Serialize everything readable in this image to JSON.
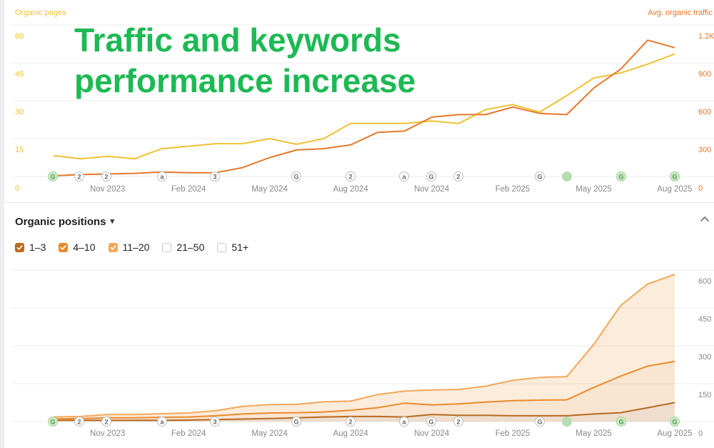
{
  "headline": {
    "line1": "Traffic and keywords",
    "line2": "performance increase"
  },
  "top_chart": {
    "left_axis_title": "Organic pages",
    "right_axis_title": "Avg. organic traffic"
  },
  "positions": {
    "title": "Organic positions",
    "legend": [
      {
        "label": "1–3",
        "checked": true,
        "color": "#b86a22"
      },
      {
        "label": "4–10",
        "checked": true,
        "color": "#e98a2c"
      },
      {
        "label": "11–20",
        "checked": true,
        "color": "#f2a85a"
      },
      {
        "label": "21–50",
        "checked": false,
        "color": "#c9c9c9"
      },
      {
        "label": "51+",
        "checked": false,
        "color": "#c9c9c9"
      }
    ]
  },
  "markers": [
    "G",
    "2",
    "2",
    "a",
    "3",
    "G",
    "2",
    "a",
    "G",
    "2",
    "G",
    "",
    "G",
    "G"
  ],
  "chart_data": [
    {
      "type": "line",
      "x": [
        "Sep 2023",
        "Oct 2023",
        "Nov 2023",
        "Dec 2023",
        "Jan 2024",
        "Feb 2024",
        "Mar 2024",
        "Apr 2024",
        "May 2024",
        "Jun 2024",
        "Jul 2024",
        "Aug 2024",
        "Sep 2024",
        "Oct 2024",
        "Nov 2024",
        "Dec 2024",
        "Jan 2025",
        "Feb 2025",
        "Mar 2025",
        "Apr 2025",
        "May 2025",
        "Jun 2025",
        "Jul 2025",
        "Aug 2025"
      ],
      "x_tick_labels": [
        "Nov 2023",
        "Feb 2024",
        "May 2024",
        "Aug 2024",
        "Nov 2024",
        "Feb 2025",
        "May 2025",
        "Aug 2025"
      ],
      "left_axis": {
        "title": "Organic pages",
        "ticks": [
          "0",
          "15",
          "30",
          "45",
          "60"
        ],
        "range": [
          0,
          60
        ]
      },
      "right_axis": {
        "title": "Avg. organic traffic",
        "ticks": [
          "0",
          "300",
          "600",
          "900",
          "1.2K"
        ],
        "range": [
          0,
          1200
        ]
      },
      "series": [
        {
          "axis": "right",
          "color": "#f0c132",
          "values": [
            165,
            140,
            160,
            140,
            220,
            240,
            260,
            260,
            300,
            255,
            300,
            420,
            420,
            420,
            440,
            420,
            530,
            570,
            510,
            640,
            780,
            820,
            890,
            970
          ]
        },
        {
          "axis": "right",
          "color": "#e6782a",
          "values": [
            5,
            15,
            20,
            25,
            35,
            30,
            30,
            70,
            150,
            210,
            220,
            250,
            350,
            360,
            470,
            490,
            490,
            550,
            500,
            490,
            700,
            850,
            1080,
            1020
          ]
        }
      ],
      "grid": true,
      "legend": "none"
    },
    {
      "type": "area",
      "stacked": true,
      "x": [
        "Sep 2023",
        "Oct 2023",
        "Nov 2023",
        "Dec 2023",
        "Jan 2024",
        "Feb 2024",
        "Mar 2024",
        "Apr 2024",
        "May 2024",
        "Jun 2024",
        "Jul 2024",
        "Aug 2024",
        "Sep 2024",
        "Oct 2024",
        "Nov 2024",
        "Dec 2024",
        "Jan 2025",
        "Feb 2025",
        "Mar 2025",
        "Apr 2025",
        "May 2025",
        "Jun 2025",
        "Jul 2025",
        "Aug 2025"
      ],
      "x_tick_labels": [
        "Nov 2023",
        "Feb 2024",
        "May 2024",
        "Aug 2024",
        "Nov 2024",
        "Feb 2025",
        "May 2025",
        "Aug 2025"
      ],
      "right_axis": {
        "ticks": [
          "0",
          "150",
          "300",
          "450",
          "600"
        ],
        "range": [
          0,
          600
        ]
      },
      "series": [
        {
          "name": "1–3",
          "color": "#b86a22",
          "values": [
            5,
            5,
            5,
            5,
            5,
            6,
            8,
            10,
            12,
            15,
            18,
            20,
            20,
            18,
            28,
            25,
            25,
            23,
            23,
            23,
            30,
            35,
            55,
            75
          ]
        },
        {
          "name": "4–10",
          "color": "#e98a2c",
          "values": [
            5,
            7,
            10,
            10,
            12,
            12,
            15,
            20,
            22,
            20,
            20,
            25,
            35,
            55,
            38,
            45,
            52,
            60,
            62,
            63,
            105,
            145,
            165,
            163
          ]
        },
        {
          "name": "11–20",
          "color": "#f2a85a",
          "values": [
            8,
            8,
            13,
            13,
            14,
            16,
            20,
            30,
            33,
            33,
            40,
            36,
            52,
            48,
            59,
            57,
            63,
            80,
            90,
            92,
            170,
            280,
            325,
            345
          ]
        }
      ],
      "grid": true,
      "legend": "top-left"
    }
  ]
}
